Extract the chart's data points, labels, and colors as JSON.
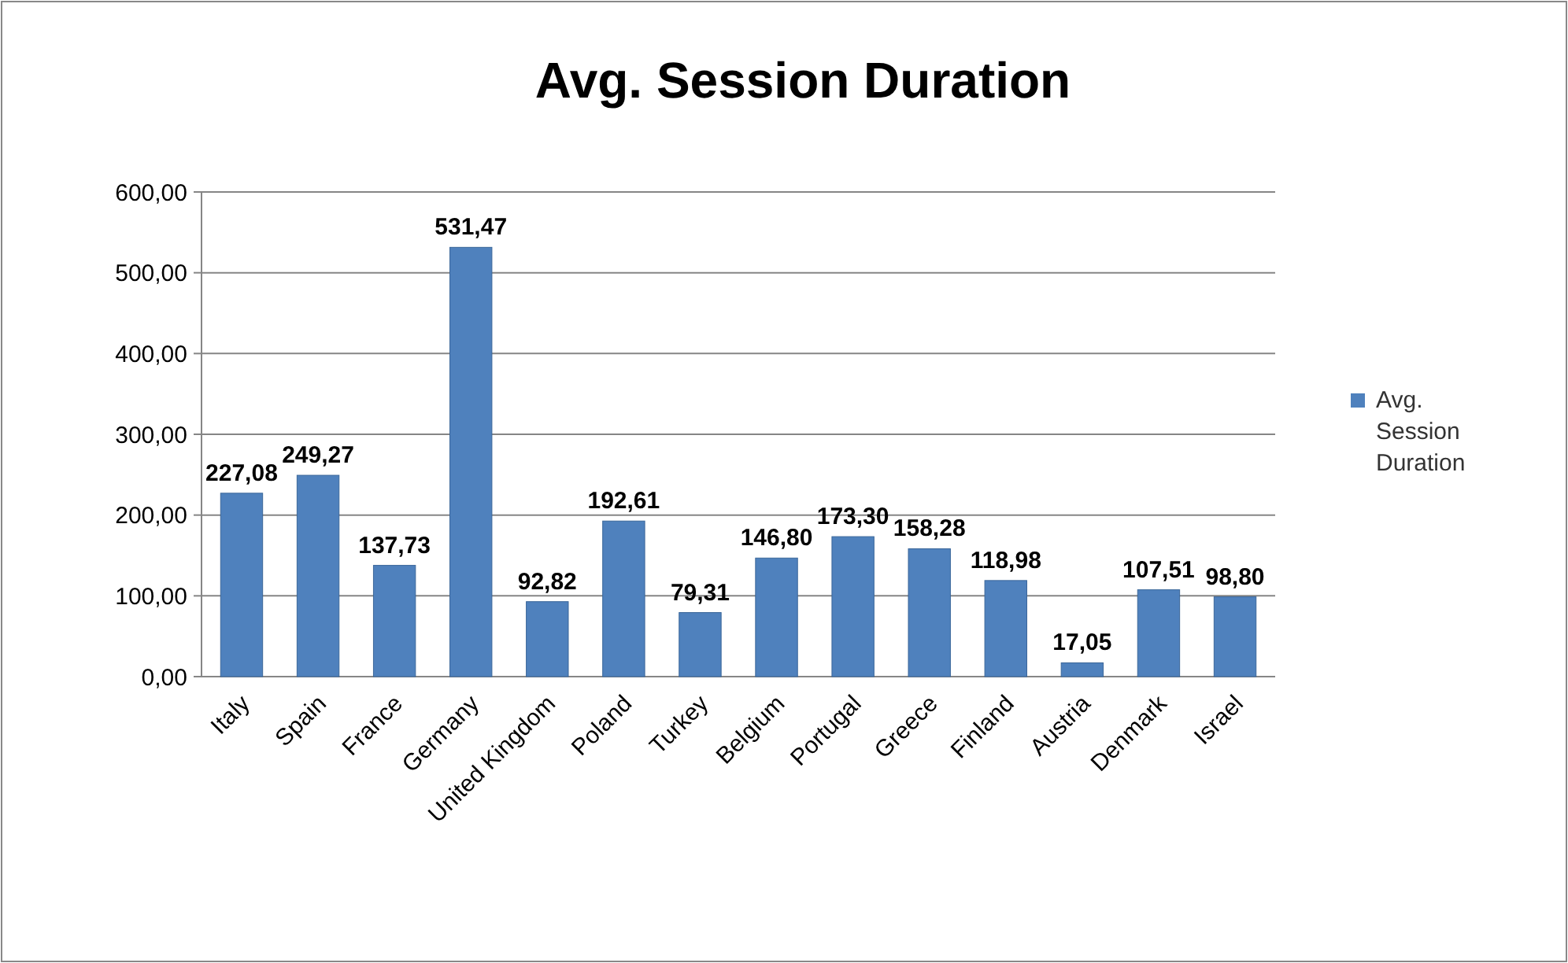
{
  "chart_data": {
    "type": "bar",
    "title": "Avg. Session Duration",
    "categories": [
      "Italy",
      "Spain",
      "France",
      "Germany",
      "United Kingdom",
      "Poland",
      "Turkey",
      "Belgium",
      "Portugal",
      "Greece",
      "Finland",
      "Austria",
      "Denmark",
      "Israel"
    ],
    "series": [
      {
        "name": "Avg. Session Duration",
        "color": "#4f81bd",
        "values": [
          227.08,
          249.27,
          137.73,
          531.47,
          92.82,
          192.61,
          79.31,
          146.8,
          173.3,
          158.28,
          118.98,
          17.05,
          107.51,
          98.8
        ],
        "value_labels": [
          "227,08",
          "249,27",
          "137,73",
          "531,47",
          "92,82",
          "192,61",
          "79,31",
          "146,80",
          "173,30",
          "158,28",
          "118,98",
          "17,05",
          "107,51",
          "98,80"
        ]
      }
    ],
    "ylim": [
      0,
      600
    ],
    "yticks": [
      {
        "value": 0,
        "label": "0,00"
      },
      {
        "value": 100,
        "label": "100,00"
      },
      {
        "value": 200,
        "label": "200,00"
      },
      {
        "value": 300,
        "label": "300,00"
      },
      {
        "value": 400,
        "label": "400,00"
      },
      {
        "value": 500,
        "label": "500,00"
      },
      {
        "value": 600,
        "label": "600,00"
      }
    ],
    "grid": "y",
    "legend": "right"
  }
}
